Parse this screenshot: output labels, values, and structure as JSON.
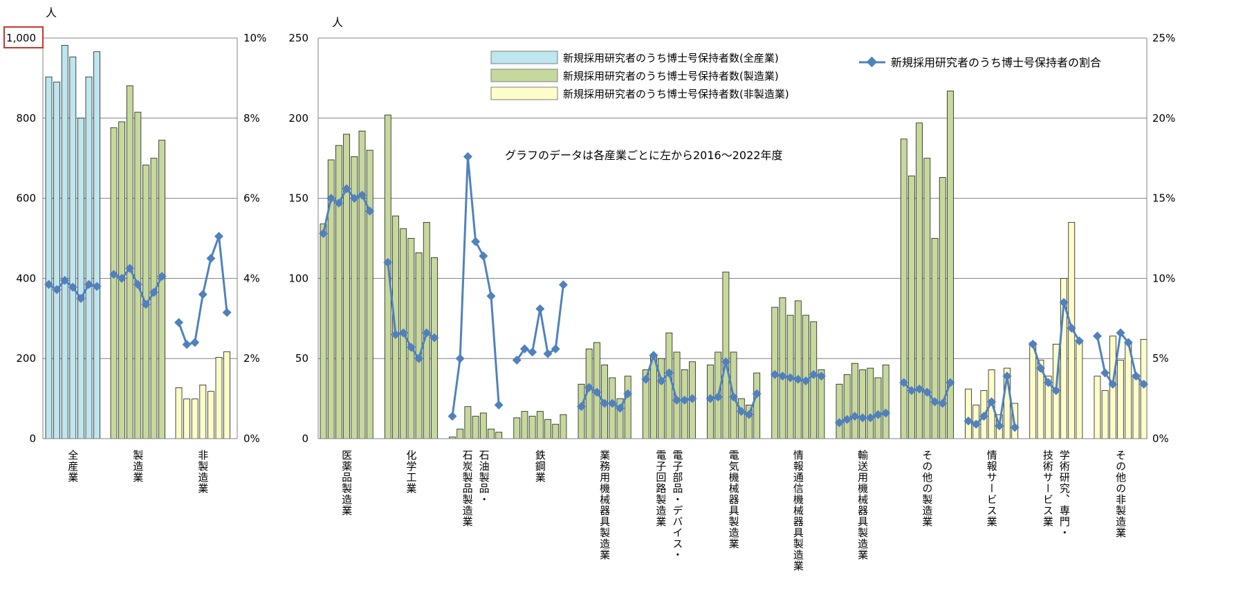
{
  "chart_data": {
    "type": "bar",
    "years_note": "グラフのデータは各産業ごとに左から2016～2022年度",
    "left_axis_unit": "人",
    "right_axis_unit": "人",
    "colors": {
      "all_industries": "#bde6ee",
      "manufacturing": "#c6d99c",
      "non_manufacturing": "#fdfdc9",
      "line": "#4f81bd",
      "gridline": "#808080",
      "highlight_box": "#c0392b"
    },
    "legend": {
      "all_industries": "新規採用研究者のうち博士号保持者数(全産業)",
      "manufacturing": "新規採用研究者のうち博士号保持者数(製造業)",
      "non_manufacturing": "新規採用研究者のうち博士号保持者数(非製造業)",
      "ratio": "新規採用研究者のうち博士号保持者の割合"
    },
    "left_panel": {
      "y_left_ticks": [
        "0",
        "200",
        "400",
        "600",
        "800",
        "1,000"
      ],
      "y_left_range": [
        0,
        1000
      ],
      "y_right_ticks": [
        "0%",
        "2%",
        "4%",
        "6%",
        "8%",
        "10%"
      ],
      "y_right_range": [
        0,
        10
      ],
      "groups": [
        {
          "label": "全産業",
          "kind": "all_industries",
          "counts": [
            903,
            890,
            982,
            953,
            800,
            903,
            966
          ],
          "ratio": [
            3.85,
            3.72,
            3.95,
            3.78,
            3.5,
            3.85,
            3.8
          ]
        },
        {
          "label": "製造業",
          "kind": "manufacturing",
          "counts": [
            776,
            791,
            881,
            815,
            683,
            700,
            745
          ],
          "ratio": [
            4.1,
            4.0,
            4.25,
            3.85,
            3.35,
            3.65,
            4.05
          ]
        },
        {
          "label": "非製造業",
          "kind": "non_manufacturing",
          "counts": [
            127,
            99,
            99,
            134,
            118,
            203,
            217
          ],
          "ratio": [
            2.9,
            2.35,
            2.4,
            3.6,
            4.5,
            5.05,
            3.15
          ]
        }
      ]
    },
    "right_panel": {
      "y_left_ticks": [
        "0",
        "50",
        "100",
        "150",
        "200",
        "250"
      ],
      "y_left_range": [
        0,
        250
      ],
      "y_right_ticks": [
        "0%",
        "5%",
        "10%",
        "15%",
        "20%",
        "25%"
      ],
      "y_right_range": [
        0,
        25
      ],
      "groups": [
        {
          "label": [
            "医薬品製造業"
          ],
          "kind": "manufacturing",
          "counts": [
            134,
            174,
            183,
            190,
            176,
            192,
            180
          ],
          "ratio": [
            12.8,
            15.0,
            14.7,
            15.6,
            15.0,
            15.2,
            14.2
          ]
        },
        {
          "label": [
            "化学工業"
          ],
          "kind": "manufacturing",
          "counts": [
            202,
            139,
            131,
            125,
            116,
            135,
            113
          ],
          "ratio": [
            11.0,
            6.5,
            6.6,
            5.7,
            5.0,
            6.6,
            6.3
          ]
        },
        {
          "label": [
            "石炭製品製造業",
            "石油製品・"
          ],
          "kind": "manufacturing",
          "counts": [
            1,
            6,
            20,
            14,
            16,
            6,
            4
          ],
          "ratio": [
            1.4,
            5.0,
            17.6,
            12.3,
            11.4,
            8.9,
            2.1
          ]
        },
        {
          "label": [
            "鉄鋼業"
          ],
          "kind": "manufacturing",
          "counts": [
            13,
            17,
            14,
            17,
            12,
            9,
            15
          ],
          "ratio": [
            4.9,
            5.6,
            5.4,
            8.1,
            5.3,
            5.6,
            9.6
          ]
        },
        {
          "label": [
            "業務用機械器具製造業"
          ],
          "kind": "manufacturing",
          "counts": [
            34,
            56,
            60,
            46,
            38,
            25,
            39
          ],
          "ratio": [
            2.0,
            3.2,
            2.9,
            2.2,
            2.2,
            1.9,
            2.8
          ]
        },
        {
          "label": [
            "電子回路製造業",
            "電子部品・デバイス・"
          ],
          "kind": "manufacturing",
          "counts": [
            43,
            51,
            50,
            66,
            54,
            43,
            48
          ],
          "ratio": [
            3.7,
            5.2,
            3.6,
            4.1,
            2.4,
            2.4,
            2.5
          ]
        },
        {
          "label": [
            "電気機械器具製造業"
          ],
          "kind": "manufacturing",
          "counts": [
            46,
            54,
            104,
            54,
            25,
            21,
            41
          ],
          "ratio": [
            2.5,
            2.6,
            4.8,
            2.6,
            1.7,
            1.5,
            2.8
          ]
        },
        {
          "label": [
            "情報通信機械器具製造業"
          ],
          "kind": "manufacturing",
          "counts": [
            82,
            88,
            77,
            86,
            77,
            73,
            43
          ],
          "ratio": [
            4.0,
            3.9,
            3.8,
            3.7,
            3.6,
            4.0,
            3.9
          ]
        },
        {
          "label": [
            "輸送用機械器具製造業"
          ],
          "kind": "manufacturing",
          "counts": [
            34,
            40,
            47,
            43,
            44,
            38,
            46
          ],
          "ratio": [
            1.0,
            1.2,
            1.4,
            1.3,
            1.3,
            1.5,
            1.6
          ]
        },
        {
          "label": [
            "その他の製造業"
          ],
          "kind": "manufacturing",
          "counts": [
            187,
            164,
            197,
            175,
            125,
            163,
            217
          ],
          "ratio": [
            3.5,
            3.0,
            3.1,
            2.9,
            2.3,
            2.2,
            3.5
          ]
        },
        {
          "label": [
            "情報サービス業"
          ],
          "kind": "non_manufacturing",
          "counts": [
            31,
            21,
            30,
            43,
            15,
            44,
            22
          ],
          "ratio": [
            1.1,
            0.9,
            1.4,
            2.3,
            0.8,
            3.9,
            0.7
          ]
        },
        {
          "label": [
            "技術サービス業",
            "学術研究、専門・"
          ],
          "kind": "non_manufacturing",
          "counts": [
            60,
            49,
            39,
            59,
            100,
            135,
            60
          ],
          "ratio": [
            5.9,
            4.4,
            3.5,
            3.0,
            8.5,
            6.9,
            6.1
          ]
        },
        {
          "label": [
            "その他の非製造業"
          ],
          "kind": "non_manufacturing",
          "counts": [
            39,
            30,
            64,
            49,
            60,
            40,
            62
          ],
          "ratio": [
            6.4,
            4.1,
            3.4,
            6.6,
            6.0,
            3.9,
            3.4
          ]
        }
      ]
    }
  }
}
